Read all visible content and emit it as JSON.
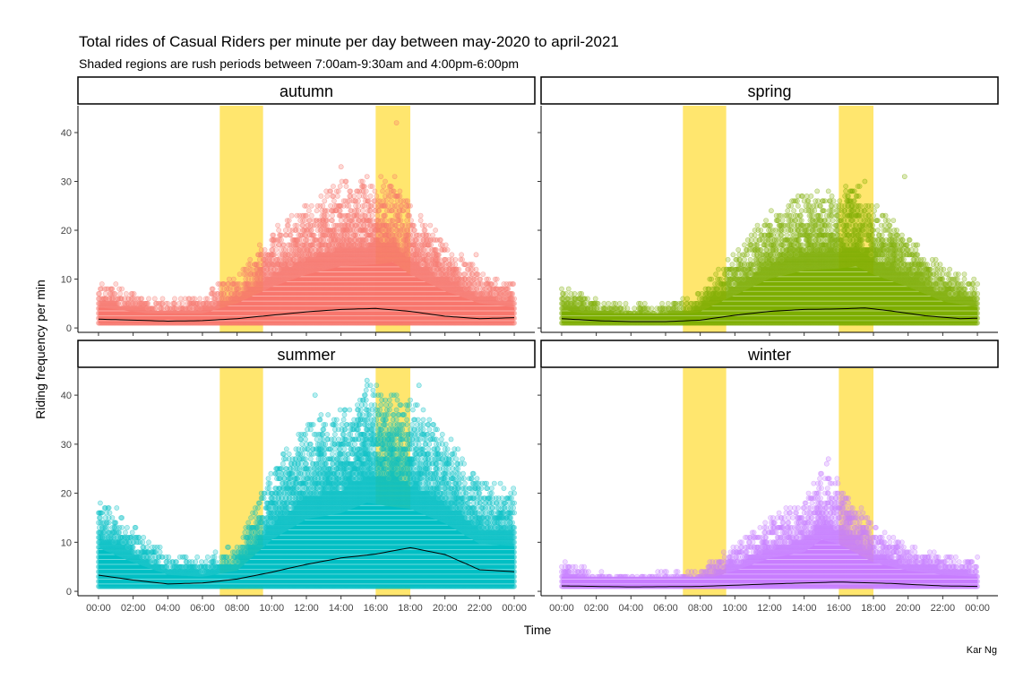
{
  "chart_data": {
    "type": "scatter",
    "title": "Total rides of Casual Riders per minute per day between may-2020 to april-2021",
    "subtitle": "Shaded regions are rush periods between 7:00am-9:30am and 4:00pm-6:00pm",
    "xlabel": "Time",
    "ylabel": "Riding frequency per min",
    "caption": "Kar Ng",
    "x_ticks": [
      "00:00",
      "02:00",
      "04:00",
      "06:00",
      "08:00",
      "10:00",
      "12:00",
      "14:00",
      "16:00",
      "18:00",
      "20:00",
      "22:00",
      "00:00"
    ],
    "y_ticks": [
      "0",
      "10",
      "20",
      "30",
      "40"
    ],
    "xlim_hours": [
      0,
      24
    ],
    "ylim": [
      0,
      44
    ],
    "rush_periods_hours": [
      [
        7.0,
        9.5
      ],
      [
        16.0,
        18.0
      ]
    ],
    "rush_color": "#FFE66E",
    "facets": [
      {
        "label": "autumn",
        "color": "#F8766D",
        "envelope": [
          [
            0,
            10
          ],
          [
            2,
            8
          ],
          [
            4,
            6
          ],
          [
            6,
            7
          ],
          [
            8,
            12
          ],
          [
            10,
            20
          ],
          [
            12,
            26
          ],
          [
            14,
            30
          ],
          [
            16,
            31
          ],
          [
            17,
            32
          ],
          [
            18,
            26
          ],
          [
            20,
            18
          ],
          [
            22,
            12
          ],
          [
            24,
            10
          ]
        ],
        "smooth": [
          [
            0,
            1.8
          ],
          [
            2,
            1.6
          ],
          [
            4,
            1.4
          ],
          [
            6,
            1.5
          ],
          [
            8,
            1.9
          ],
          [
            10,
            2.6
          ],
          [
            12,
            3.3
          ],
          [
            14,
            3.8
          ],
          [
            16,
            4.0
          ],
          [
            18,
            3.4
          ],
          [
            20,
            2.4
          ],
          [
            22,
            1.9
          ],
          [
            24,
            2.1
          ]
        ],
        "outliers": [
          [
            17.2,
            42
          ],
          [
            14.0,
            33
          ],
          [
            15.5,
            31
          ],
          [
            21.8,
            15
          ]
        ]
      },
      {
        "label": "spring",
        "color": "#7CAE00",
        "envelope": [
          [
            0,
            9
          ],
          [
            2,
            6
          ],
          [
            4,
            5
          ],
          [
            6,
            5
          ],
          [
            8,
            8
          ],
          [
            10,
            16
          ],
          [
            12,
            24
          ],
          [
            14,
            28
          ],
          [
            16,
            29
          ],
          [
            17,
            30
          ],
          [
            18,
            26
          ],
          [
            20,
            20
          ],
          [
            22,
            13
          ],
          [
            24,
            10
          ]
        ],
        "smooth": [
          [
            0,
            1.9
          ],
          [
            2,
            1.5
          ],
          [
            4,
            1.3
          ],
          [
            6,
            1.3
          ],
          [
            8,
            1.6
          ],
          [
            10,
            2.6
          ],
          [
            12,
            3.4
          ],
          [
            14,
            3.8
          ],
          [
            16,
            3.9
          ],
          [
            17.5,
            4.1
          ],
          [
            19,
            3.5
          ],
          [
            21,
            2.5
          ],
          [
            23,
            1.9
          ],
          [
            24,
            2.0
          ]
        ],
        "outliers": [
          [
            19.8,
            31
          ],
          [
            17.5,
            30
          ]
        ]
      },
      {
        "label": "summer",
        "color": "#00BFC4",
        "envelope": [
          [
            0,
            21
          ],
          [
            2,
            14
          ],
          [
            4,
            8
          ],
          [
            6,
            7
          ],
          [
            8,
            10
          ],
          [
            10,
            25
          ],
          [
            12,
            35
          ],
          [
            14,
            38
          ],
          [
            15.5,
            43
          ],
          [
            17,
            41
          ],
          [
            18,
            40
          ],
          [
            20,
            33
          ],
          [
            22,
            23
          ],
          [
            24,
            22
          ]
        ],
        "smooth": [
          [
            0,
            3.3
          ],
          [
            2,
            2.3
          ],
          [
            4,
            1.5
          ],
          [
            6,
            1.7
          ],
          [
            8,
            2.5
          ],
          [
            10,
            3.9
          ],
          [
            12,
            5.5
          ],
          [
            14,
            6.8
          ],
          [
            16,
            7.6
          ],
          [
            18,
            8.9
          ],
          [
            20,
            7.5
          ],
          [
            22,
            4.4
          ],
          [
            24,
            4.0
          ]
        ],
        "outliers": [
          [
            15.5,
            43
          ],
          [
            18.5,
            42
          ],
          [
            12.5,
            40
          ]
        ]
      },
      {
        "label": "winter",
        "color": "#C77CFF",
        "envelope": [
          [
            0,
            7
          ],
          [
            2,
            4
          ],
          [
            4,
            4
          ],
          [
            6,
            4
          ],
          [
            8,
            5
          ],
          [
            10,
            10
          ],
          [
            12,
            16
          ],
          [
            14,
            19
          ],
          [
            15,
            25
          ],
          [
            16,
            23
          ],
          [
            18,
            14
          ],
          [
            20,
            10
          ],
          [
            22,
            8
          ],
          [
            24,
            7
          ]
        ],
        "smooth": [
          [
            0,
            1.1
          ],
          [
            4,
            0.9
          ],
          [
            8,
            1.0
          ],
          [
            12,
            1.5
          ],
          [
            16,
            1.9
          ],
          [
            19,
            1.6
          ],
          [
            22,
            1.1
          ],
          [
            24,
            1.0
          ]
        ],
        "outliers": [
          [
            15.4,
            27
          ],
          [
            15.3,
            26
          ]
        ]
      }
    ]
  }
}
